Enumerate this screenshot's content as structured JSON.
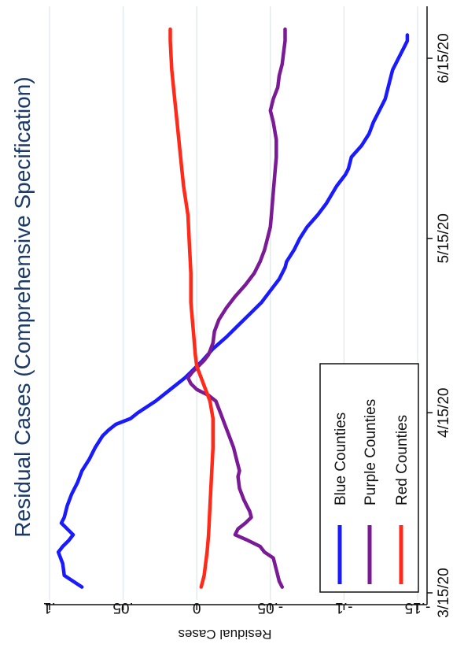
{
  "chart_data": {
    "type": "line",
    "title": "Residual Cases (Comprehensive Specification)",
    "ylabel": "Residual Cases",
    "xlabel": "",
    "x_tick_labels": [
      "3/15/20",
      "4/15/20",
      "5/15/20",
      "6/15/20"
    ],
    "y_ticks": [
      0.1,
      0.05,
      0,
      -0.05,
      -0.1,
      -0.15
    ],
    "y_tick_labels": [
      ".1",
      ".05",
      "0",
      "-.05",
      "-.1",
      "-.15"
    ],
    "ylim": [
      -0.155,
      0.105
    ],
    "x_range_days": [
      0,
      100
    ],
    "grid": true,
    "legend_position": "bottom-right",
    "colors": {
      "title": "#1b3a6a",
      "grid": "#dbe6ee",
      "axis": "#111111"
    },
    "series": [
      {
        "name": "Blue Counties",
        "color": "#1a1aff",
        "points": [
          [
            1,
            0.078
          ],
          [
            3,
            0.09
          ],
          [
            5,
            0.091
          ],
          [
            7,
            0.094
          ],
          [
            8,
            0.091
          ],
          [
            9,
            0.087
          ],
          [
            10,
            0.084
          ],
          [
            11,
            0.088
          ],
          [
            12,
            0.092
          ],
          [
            13,
            0.09
          ],
          [
            15,
            0.088
          ],
          [
            17,
            0.085
          ],
          [
            19,
            0.081
          ],
          [
            21,
            0.078
          ],
          [
            23,
            0.073
          ],
          [
            25,
            0.069
          ],
          [
            27,
            0.064
          ],
          [
            28,
            0.06
          ],
          [
            29,
            0.055
          ],
          [
            30,
            0.045
          ],
          [
            31,
            0.04
          ],
          [
            33,
            0.028
          ],
          [
            35,
            0.018
          ],
          [
            37,
            0.008
          ],
          [
            38,
            0.004
          ],
          [
            39,
            0
          ],
          [
            40,
            -0.004
          ],
          [
            42,
            -0.011
          ],
          [
            44,
            -0.02
          ],
          [
            46,
            -0.028
          ],
          [
            48,
            -0.036
          ],
          [
            50,
            -0.044
          ],
          [
            52,
            -0.05
          ],
          [
            54,
            -0.056
          ],
          [
            56,
            -0.06
          ],
          [
            57,
            -0.061
          ],
          [
            59,
            -0.066
          ],
          [
            61,
            -0.07
          ],
          [
            63,
            -0.075
          ],
          [
            65,
            -0.082
          ],
          [
            67,
            -0.088
          ],
          [
            70,
            -0.095
          ],
          [
            72,
            -0.101
          ],
          [
            73,
            -0.103
          ],
          [
            74,
            -0.104
          ],
          [
            75,
            -0.105
          ],
          [
            77,
            -0.112
          ],
          [
            79,
            -0.117
          ],
          [
            81,
            -0.12
          ],
          [
            83,
            -0.124
          ],
          [
            85,
            -0.128
          ],
          [
            88,
            -0.131
          ],
          [
            90,
            -0.133
          ],
          [
            92,
            -0.137
          ],
          [
            94,
            -0.141
          ],
          [
            95,
            -0.143
          ],
          [
            96,
            -0.143
          ]
        ]
      },
      {
        "name": "Purple Counties",
        "color": "#7a1a96",
        "points": [
          [
            1,
            -0.058
          ],
          [
            2,
            -0.056
          ],
          [
            3,
            -0.055
          ],
          [
            4,
            -0.054
          ],
          [
            5,
            -0.053
          ],
          [
            6,
            -0.052
          ],
          [
            7,
            -0.046
          ],
          [
            8,
            -0.043
          ],
          [
            9,
            -0.035
          ],
          [
            10,
            -0.026
          ],
          [
            11,
            -0.028
          ],
          [
            12,
            -0.033
          ],
          [
            13,
            -0.037
          ],
          [
            14,
            -0.036
          ],
          [
            15,
            -0.034
          ],
          [
            16,
            -0.032
          ],
          [
            18,
            -0.029
          ],
          [
            20,
            -0.028
          ],
          [
            21,
            -0.029
          ],
          [
            23,
            -0.027
          ],
          [
            25,
            -0.025
          ],
          [
            27,
            -0.022
          ],
          [
            29,
            -0.019
          ],
          [
            31,
            -0.016
          ],
          [
            33,
            -0.013
          ],
          [
            34,
            -0.008
          ],
          [
            35,
            0
          ],
          [
            36,
            0.004
          ],
          [
            37,
            0.006
          ],
          [
            38,
            0.003
          ],
          [
            39,
            -0.001
          ],
          [
            40,
            -0.005
          ],
          [
            41,
            -0.008
          ],
          [
            43,
            -0.011
          ],
          [
            45,
            -0.012
          ],
          [
            47,
            -0.015
          ],
          [
            49,
            -0.02
          ],
          [
            51,
            -0.026
          ],
          [
            53,
            -0.033
          ],
          [
            55,
            -0.039
          ],
          [
            57,
            -0.043
          ],
          [
            59,
            -0.046
          ],
          [
            61,
            -0.048
          ],
          [
            63,
            -0.05
          ],
          [
            66,
            -0.051
          ],
          [
            69,
            -0.052
          ],
          [
            72,
            -0.053
          ],
          [
            75,
            -0.054
          ],
          [
            78,
            -0.054
          ],
          [
            81,
            -0.052
          ],
          [
            83,
            -0.05
          ],
          [
            85,
            -0.052
          ],
          [
            87,
            -0.055
          ],
          [
            89,
            -0.056
          ],
          [
            91,
            -0.058
          ],
          [
            93,
            -0.059
          ],
          [
            95,
            -0.06
          ],
          [
            97,
            -0.06
          ]
        ]
      },
      {
        "name": "Red Counties",
        "color": "#ff2a1a",
        "points": [
          [
            1,
            -0.003
          ],
          [
            3,
            -0.005
          ],
          [
            5,
            -0.006
          ],
          [
            7,
            -0.007
          ],
          [
            10,
            -0.008
          ],
          [
            15,
            -0.009
          ],
          [
            20,
            -0.01
          ],
          [
            25,
            -0.011
          ],
          [
            30,
            -0.011
          ],
          [
            33,
            -0.009
          ],
          [
            35,
            -0.006
          ],
          [
            37,
            -0.003
          ],
          [
            39,
            0
          ],
          [
            41,
            0.001
          ],
          [
            44,
            0.002
          ],
          [
            47,
            0.003
          ],
          [
            50,
            0.004
          ],
          [
            55,
            0.004
          ],
          [
            60,
            0.005
          ],
          [
            65,
            0.006
          ],
          [
            70,
            0.009
          ],
          [
            75,
            0.011
          ],
          [
            80,
            0.013
          ],
          [
            85,
            0.015
          ],
          [
            90,
            0.017
          ],
          [
            95,
            0.018
          ],
          [
            97,
            0.018
          ]
        ]
      }
    ]
  }
}
